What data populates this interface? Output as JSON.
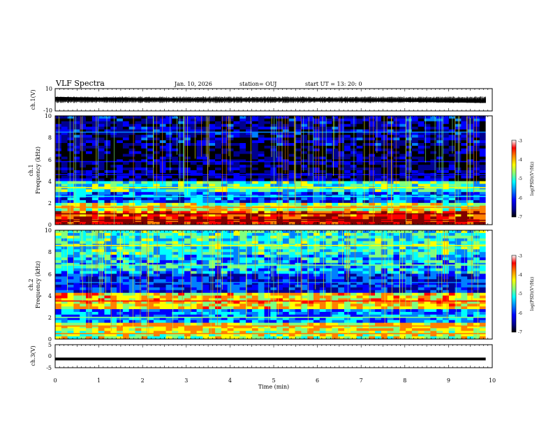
{
  "header": {
    "title": "VLF Spectra",
    "date": "Jan. 10, 2026",
    "station": "station= OUJ",
    "start": "start UT =  13: 20: 0"
  },
  "chart_data": [
    {
      "type": "line",
      "panel": "ch1-waveform",
      "ylabel": "ch.1(V)",
      "ylim": [
        -10,
        10
      ],
      "y_ticks": [
        "10",
        "-10"
      ],
      "x_range_min": [
        0,
        9.85
      ],
      "description_values": {
        "mean": 0,
        "amplitude_envelope": 3
      },
      "trace_color": "#000000"
    },
    {
      "type": "heatmap",
      "panel": "ch1-spectrogram",
      "ylabel_top": "ch.1",
      "ylabel": "Frequency (kHz)",
      "ylim": [
        0,
        10
      ],
      "y_ticks": [
        "0",
        "2",
        "4",
        "6",
        "8",
        "10"
      ],
      "colorbar": {
        "label": "log(PSD)(V²/Hz)",
        "ticks": [
          "-3",
          "-4",
          "-5",
          "-6",
          "-7"
        ],
        "range": [
          -7,
          -3
        ]
      },
      "bands_khz": [
        {
          "f": 0.4,
          "level": -3.4
        },
        {
          "f": 1.0,
          "level": -3.8
        },
        {
          "f": 1.6,
          "level": -4.6
        },
        {
          "f": 2.6,
          "level": -5.8
        },
        {
          "f": 3.4,
          "level": -5.0
        },
        {
          "f": 4.6,
          "level": -6.4
        },
        {
          "f": 5.8,
          "level": -6.6
        },
        {
          "f": 8.5,
          "level": -6.3
        }
      ]
    },
    {
      "type": "heatmap",
      "panel": "ch2-spectrogram",
      "ylabel_top": "ch.2",
      "ylabel": "Frequency (kHz)",
      "ylim": [
        0,
        10
      ],
      "y_ticks": [
        "0",
        "2",
        "4",
        "6",
        "8",
        "10"
      ],
      "colorbar": {
        "label": "log(PSD)(V²/Hz)",
        "ticks": [
          "-3",
          "-4",
          "-5",
          "-6",
          "-7"
        ],
        "range": [
          -7,
          -3
        ]
      },
      "bands_khz": [
        {
          "f": 0.5,
          "level": -4.6
        },
        {
          "f": 1.2,
          "level": -4.4
        },
        {
          "f": 2.0,
          "level": -5.6
        },
        {
          "f": 3.5,
          "level": -4.3
        },
        {
          "f": 5.2,
          "level": -6.0
        },
        {
          "f": 6.8,
          "level": -5.4
        },
        {
          "f": 8.6,
          "level": -5.1
        }
      ]
    },
    {
      "type": "line",
      "panel": "ch3-waveform",
      "ylabel": "ch.3(V)",
      "ylim": [
        -5,
        5
      ],
      "y_ticks": [
        "5",
        "0",
        "-5"
      ],
      "x": [
        0,
        9.85
      ],
      "y": [
        -1.2,
        -1.2
      ],
      "trace_color": "#000000"
    }
  ],
  "x_axis": {
    "xlabel": "Time (min)",
    "xlim": [
      0,
      10
    ],
    "tick_labels": [
      "0",
      "1",
      "2",
      "3",
      "4",
      "5",
      "6",
      "7",
      "8",
      "9",
      "10"
    ]
  },
  "colormap": [
    "#000000",
    "#00008f",
    "#0000ff",
    "#0080ff",
    "#00ffff",
    "#80ff80",
    "#ffff00",
    "#ff8000",
    "#ff0000",
    "#800000"
  ]
}
